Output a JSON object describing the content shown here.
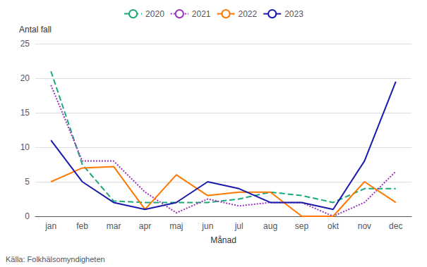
{
  "chart_data": {
    "type": "line",
    "xlabel": "Månad",
    "ylabel": "Antal fall",
    "source": "Källa: Folkhälsomyndigheten",
    "categories": [
      "jan",
      "feb",
      "mar",
      "apr",
      "maj",
      "jun",
      "jul",
      "aug",
      "sep",
      "okt",
      "nov",
      "dec"
    ],
    "series": [
      {
        "name": "2020",
        "color": "#1aaa7a",
        "line_style": "dashed",
        "values": [
          21,
          7.5,
          2.2,
          2,
          2,
          2,
          2.5,
          3.5,
          3,
          2,
          4,
          4
        ]
      },
      {
        "name": "2021",
        "color": "#9933bb",
        "line_style": "dotted",
        "values": [
          19,
          8,
          8,
          3.5,
          0.5,
          2.5,
          1.5,
          2,
          2,
          0,
          2,
          6.5
        ]
      },
      {
        "name": "2022",
        "color": "#ff7700",
        "line_style": "solid",
        "values": [
          5,
          7,
          7.2,
          1,
          6,
          3,
          3.5,
          3.5,
          0,
          0,
          5,
          2
        ]
      },
      {
        "name": "2023",
        "color": "#1a1aaa",
        "line_style": "solid",
        "values": [
          11,
          5,
          2,
          1,
          2,
          5,
          4,
          2,
          2,
          1,
          8,
          19.5
        ]
      }
    ],
    "ylim": [
      0,
      25
    ],
    "yticks": [
      0,
      5,
      10,
      15,
      20,
      25
    ],
    "grid": true,
    "legend": "top"
  }
}
